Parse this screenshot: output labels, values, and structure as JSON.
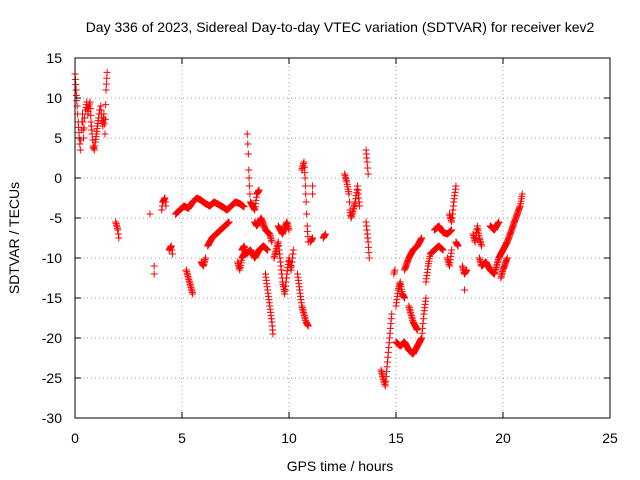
{
  "chart_data": {
    "type": "scatter",
    "title": "Day 336 of 2023, Sidereal Day-to-day VTEC variation (SDTVAR) for receiver kev2",
    "xlabel": "GPS time / hours",
    "ylabel": "SDTVAR / TECUs",
    "xlim": [
      0,
      25
    ],
    "ylim": [
      -30,
      15
    ],
    "xticks": [
      0,
      5,
      10,
      15,
      20,
      25
    ],
    "yticks": [
      -30,
      -25,
      -20,
      -15,
      -10,
      -5,
      0,
      5,
      10,
      15
    ],
    "grid": true,
    "marker": "+",
    "color": "#ff0000",
    "series": [
      {
        "name": "SDTVAR",
        "segments": [
          [
            [
              0.0,
              13.0
            ],
            [
              0.05,
              11.0
            ],
            [
              0.1,
              9.0
            ],
            [
              0.15,
              7.0
            ],
            [
              0.2,
              5.0
            ],
            [
              0.25,
              3.5
            ],
            [
              0.3,
              6.0
            ],
            [
              0.35,
              8.0
            ],
            [
              0.4,
              5.0
            ],
            [
              0.45,
              7.5
            ]
          ],
          [
            [
              0.5,
              8.5
            ],
            [
              0.55,
              9.5
            ],
            [
              0.6,
              8.0
            ],
            [
              0.65,
              9.0
            ],
            [
              0.7,
              9.5
            ],
            [
              0.75,
              7.0
            ],
            [
              0.8,
              5.5
            ],
            [
              0.85,
              4.0
            ],
            [
              0.9,
              3.5
            ],
            [
              0.95,
              4.5
            ],
            [
              1.0,
              5.5
            ],
            [
              1.05,
              6.5
            ],
            [
              1.1,
              7.5
            ],
            [
              1.15,
              8.5
            ]
          ],
          [
            [
              1.2,
              9.0
            ],
            [
              1.25,
              7.5
            ],
            [
              1.3,
              6.5
            ],
            [
              1.35,
              8.0
            ],
            [
              1.4,
              5.5
            ],
            [
              1.45,
              11.0
            ],
            [
              1.5,
              13.2
            ]
          ],
          [
            [
              1.9,
              -5.5
            ],
            [
              2.0,
              -6.5
            ],
            [
              2.05,
              -7.5
            ]
          ],
          [
            [
              3.5,
              -4.5
            ]
          ],
          [
            [
              3.7,
              -11.0
            ],
            [
              3.7,
              -12.0
            ]
          ],
          [
            [
              4.05,
              -4.0
            ],
            [
              4.1,
              -3.0
            ],
            [
              4.2,
              -2.5
            ],
            [
              4.25,
              -3.5
            ]
          ],
          [
            [
              4.4,
              -9.0
            ],
            [
              4.5,
              -8.5
            ],
            [
              4.55,
              -9.5
            ]
          ],
          [
            [
              4.7,
              -4.5
            ],
            [
              4.9,
              -4.0
            ],
            [
              5.1,
              -3.5
            ],
            [
              5.3,
              -3.8
            ],
            [
              5.5,
              -3.0
            ],
            [
              5.7,
              -2.5
            ],
            [
              5.9,
              -2.8
            ],
            [
              6.1,
              -3.2
            ],
            [
              6.3,
              -3.5
            ],
            [
              6.5,
              -3.0
            ],
            [
              6.7,
              -3.3
            ],
            [
              6.9,
              -3.6
            ],
            [
              7.1,
              -4.0
            ],
            [
              7.3,
              -3.5
            ],
            [
              7.5,
              -3.0
            ],
            [
              7.7,
              -3.2
            ],
            [
              7.9,
              -3.6
            ]
          ],
          [
            [
              5.2,
              -11.5
            ],
            [
              5.3,
              -12.5
            ],
            [
              5.4,
              -13.5
            ],
            [
              5.5,
              -14.5
            ]
          ],
          [
            [
              5.9,
              -10.5
            ],
            [
              6.0,
              -11.0
            ],
            [
              6.1,
              -10.0
            ]
          ],
          [
            [
              6.2,
              -8.5
            ],
            [
              6.4,
              -7.5
            ],
            [
              6.6,
              -7.0
            ],
            [
              6.8,
              -6.5
            ],
            [
              7.0,
              -6.0
            ],
            [
              7.2,
              -5.5
            ]
          ],
          [
            [
              7.6,
              -10.5
            ],
            [
              7.7,
              -11.5
            ],
            [
              7.8,
              -10.0
            ],
            [
              7.9,
              -9.5
            ]
          ],
          [
            [
              8.05,
              5.5
            ],
            [
              8.1,
              3.0
            ],
            [
              8.12,
              1.0
            ],
            [
              8.15,
              -1.0
            ],
            [
              8.2,
              -3.0
            ],
            [
              8.3,
              -3.5
            ],
            [
              8.4,
              -4.0
            ],
            [
              8.5,
              -2.0
            ],
            [
              8.6,
              -1.5
            ]
          ],
          [
            [
              7.8,
              -9.0
            ],
            [
              7.9,
              -8.5
            ],
            [
              8.0,
              -9.5
            ],
            [
              8.2,
              -9.0
            ],
            [
              8.4,
              -10.0
            ],
            [
              8.6,
              -9.0
            ],
            [
              8.8,
              -8.5
            ],
            [
              9.0,
              -9.0
            ]
          ],
          [
            [
              8.4,
              -5.5
            ],
            [
              8.5,
              -6.0
            ],
            [
              8.7,
              -5.0
            ],
            [
              8.9,
              -6.5
            ],
            [
              9.1,
              -7.0
            ],
            [
              9.2,
              -8.0
            ]
          ],
          [
            [
              8.9,
              -12.0
            ],
            [
              9.0,
              -14.0
            ],
            [
              9.1,
              -16.0
            ],
            [
              9.2,
              -18.0
            ],
            [
              9.25,
              -19.5
            ]
          ],
          [
            [
              9.3,
              -10.0
            ],
            [
              9.4,
              -9.0
            ],
            [
              9.5,
              -8.0
            ],
            [
              9.6,
              -10.5
            ],
            [
              9.7,
              -13.0
            ],
            [
              9.8,
              -14.5
            ],
            [
              9.9,
              -12.0
            ],
            [
              10.0,
              -10.0
            ],
            [
              10.1,
              -11.5
            ],
            [
              10.2,
              -9.0
            ]
          ],
          [
            [
              9.5,
              -6.0
            ],
            [
              9.7,
              -7.0
            ],
            [
              9.9,
              -5.5
            ],
            [
              10.0,
              -6.5
            ]
          ],
          [
            [
              10.4,
              -12.0
            ],
            [
              10.5,
              -14.0
            ],
            [
              10.6,
              -16.0
            ],
            [
              10.7,
              -17.0
            ],
            [
              10.8,
              -18.0
            ],
            [
              10.9,
              -18.5
            ]
          ],
          [
            [
              10.6,
              1.0
            ],
            [
              10.7,
              2.0
            ],
            [
              10.75,
              0.0
            ],
            [
              10.8,
              -3.0
            ],
            [
              10.85,
              -6.0
            ],
            [
              10.9,
              -8.0
            ]
          ],
          [
            [
              11.0,
              -8.0
            ],
            [
              11.1,
              -7.5
            ],
            [
              11.1,
              -1.0
            ],
            [
              11.1,
              -2.0
            ]
          ],
          [
            [
              11.6,
              -7.5
            ],
            [
              11.7,
              -7.0
            ]
          ],
          [
            [
              12.6,
              0.5
            ],
            [
              12.7,
              -0.5
            ],
            [
              12.8,
              -2.0
            ],
            [
              12.85,
              -4.0
            ],
            [
              12.9,
              -5.0
            ],
            [
              13.0,
              -4.0
            ],
            [
              13.1,
              -3.0
            ],
            [
              13.2,
              -1.0
            ],
            [
              13.3,
              -3.5
            ]
          ],
          [
            [
              13.6,
              -5.5
            ],
            [
              13.7,
              -8.0
            ],
            [
              13.75,
              -10.0
            ]
          ],
          [
            [
              13.6,
              3.5
            ],
            [
              13.65,
              2.0
            ],
            [
              13.7,
              0.5
            ]
          ],
          [
            [
              14.3,
              -24.0
            ],
            [
              14.4,
              -25.0
            ],
            [
              14.5,
              -26.0
            ],
            [
              14.6,
              -23.0
            ],
            [
              14.7,
              -20.0
            ],
            [
              14.8,
              -17.0
            ]
          ],
          [
            [
              14.9,
              -12.0
            ],
            [
              14.95,
              -11.5
            ]
          ],
          [
            [
              15.0,
              -16.0
            ],
            [
              15.1,
              -14.0
            ],
            [
              15.2,
              -13.0
            ],
            [
              15.3,
              -14.5
            ],
            [
              15.4,
              -15.0
            ]
          ],
          [
            [
              15.0,
              -20.5
            ],
            [
              15.2,
              -21.0
            ],
            [
              15.4,
              -20.5
            ],
            [
              15.6,
              -21.5
            ],
            [
              15.8,
              -22.0
            ],
            [
              16.0,
              -21.0
            ],
            [
              16.2,
              -20.0
            ],
            [
              16.3,
              -17.0
            ],
            [
              16.4,
              -15.0
            ]
          ],
          [
            [
              15.4,
              -11.5
            ],
            [
              15.6,
              -10.0
            ],
            [
              15.8,
              -9.0
            ],
            [
              16.0,
              -8.5
            ],
            [
              16.2,
              -7.5
            ]
          ],
          [
            [
              15.6,
              -16.0
            ],
            [
              15.8,
              -18.0
            ],
            [
              16.0,
              -19.0
            ]
          ],
          [
            [
              16.4,
              -13.0
            ],
            [
              16.5,
              -11.0
            ],
            [
              16.6,
              -9.5
            ],
            [
              16.8,
              -9.0
            ],
            [
              17.0,
              -8.5
            ],
            [
              17.2,
              -9.0
            ]
          ],
          [
            [
              16.8,
              -6.5
            ],
            [
              17.0,
              -6.0
            ],
            [
              17.2,
              -6.8
            ],
            [
              17.4,
              -7.0
            ],
            [
              17.6,
              -6.5
            ]
          ],
          [
            [
              17.4,
              -10.0
            ],
            [
              17.5,
              -11.0
            ],
            [
              17.6,
              -9.0
            ]
          ],
          [
            [
              17.5,
              -4.5
            ],
            [
              17.6,
              -5.5
            ],
            [
              17.7,
              -3.0
            ],
            [
              17.8,
              -1.0
            ]
          ],
          [
            [
              17.8,
              -8.0
            ],
            [
              17.9,
              -8.5
            ]
          ],
          [
            [
              18.1,
              -11.0
            ],
            [
              18.2,
              -12.0
            ],
            [
              18.3,
              -11.5
            ]
          ],
          [
            [
              18.2,
              -14.0
            ]
          ],
          [
            [
              18.6,
              -7.0
            ],
            [
              18.7,
              -8.0
            ],
            [
              18.8,
              -6.0
            ],
            [
              18.9,
              -7.5
            ],
            [
              19.0,
              -8.5
            ]
          ],
          [
            [
              18.9,
              -10.0
            ],
            [
              19.0,
              -11.0
            ],
            [
              19.2,
              -10.5
            ],
            [
              19.4,
              -11.5
            ],
            [
              19.6,
              -12.0
            ],
            [
              19.8,
              -10.0
            ],
            [
              20.0,
              -9.0
            ],
            [
              20.2,
              -8.0
            ],
            [
              20.4,
              -6.5
            ],
            [
              20.6,
              -5.0
            ],
            [
              20.8,
              -3.5
            ],
            [
              20.9,
              -2.0
            ]
          ],
          [
            [
              19.4,
              -6.0
            ],
            [
              19.6,
              -6.5
            ],
            [
              19.8,
              -5.5
            ]
          ],
          [
            [
              19.9,
              -12.5
            ],
            [
              20.0,
              -11.5
            ],
            [
              20.2,
              -10.0
            ]
          ]
        ]
      }
    ]
  }
}
